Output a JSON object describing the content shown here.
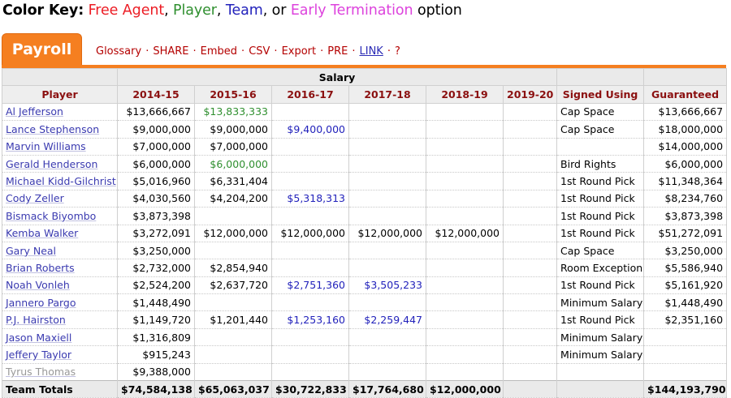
{
  "color_key": {
    "label": "Color Key:",
    "free_agent": "Free Agent",
    "sep1": ",",
    "player": "Player",
    "sep2": ",",
    "team": "Team",
    "sep3": ", or",
    "early_termination": "Early Termination",
    "suffix": "option"
  },
  "tabs": {
    "active": "Payroll",
    "links": [
      "Glossary",
      "SHARE",
      "Embed",
      "CSV",
      "Export",
      "PRE",
      "LINK",
      "?"
    ]
  },
  "table": {
    "group_header": "Salary",
    "columns": [
      "Player",
      "2014-15",
      "2015-16",
      "2016-17",
      "2017-18",
      "2018-19",
      "2019-20",
      "Signed Using",
      "Guaranteed"
    ],
    "rows": [
      {
        "player": "Al Jefferson",
        "s": [
          "$13,666,667",
          "$13,833,333",
          "",
          "",
          "",
          ""
        ],
        "signed": "Cap Space",
        "guaranteed": "$13,666,667"
      },
      {
        "player": "Lance Stephenson",
        "s": [
          "$9,000,000",
          "$9,000,000",
          "$9,400,000",
          "",
          "",
          ""
        ],
        "signed": "Cap Space",
        "guaranteed": "$18,000,000"
      },
      {
        "player": "Marvin Williams",
        "s": [
          "$7,000,000",
          "$7,000,000",
          "",
          "",
          "",
          ""
        ],
        "signed": "",
        "guaranteed": "$14,000,000"
      },
      {
        "player": "Gerald Henderson",
        "s": [
          "$6,000,000",
          "$6,000,000",
          "",
          "",
          "",
          ""
        ],
        "signed": "Bird Rights",
        "guaranteed": "$6,000,000"
      },
      {
        "player": "Michael Kidd-Gilchrist",
        "s": [
          "$5,016,960",
          "$6,331,404",
          "",
          "",
          "",
          ""
        ],
        "signed": "1st Round Pick",
        "guaranteed": "$11,348,364"
      },
      {
        "player": "Cody Zeller",
        "s": [
          "$4,030,560",
          "$4,204,200",
          "$5,318,313",
          "",
          "",
          ""
        ],
        "signed": "1st Round Pick",
        "guaranteed": "$8,234,760"
      },
      {
        "player": "Bismack Biyombo",
        "s": [
          "$3,873,398",
          "",
          "",
          "",
          "",
          ""
        ],
        "signed": "1st Round Pick",
        "guaranteed": "$3,873,398"
      },
      {
        "player": "Kemba Walker",
        "s": [
          "$3,272,091",
          "$12,000,000",
          "$12,000,000",
          "$12,000,000",
          "$12,000,000",
          ""
        ],
        "signed": "1st Round Pick",
        "guaranteed": "$51,272,091"
      },
      {
        "player": "Gary Neal",
        "s": [
          "$3,250,000",
          "",
          "",
          "",
          "",
          ""
        ],
        "signed": "Cap Space",
        "guaranteed": "$3,250,000"
      },
      {
        "player": "Brian Roberts",
        "s": [
          "$2,732,000",
          "$2,854,940",
          "",
          "",
          "",
          ""
        ],
        "signed": "Room Exception",
        "guaranteed": "$5,586,940"
      },
      {
        "player": "Noah Vonleh",
        "s": [
          "$2,524,200",
          "$2,637,720",
          "$2,751,360",
          "$3,505,233",
          "",
          ""
        ],
        "signed": "1st Round Pick",
        "guaranteed": "$5,161,920"
      },
      {
        "player": "Jannero Pargo",
        "s": [
          "$1,448,490",
          "",
          "",
          "",
          "",
          ""
        ],
        "signed": "Minimum Salary",
        "guaranteed": "$1,448,490"
      },
      {
        "player": "P.J. Hairston",
        "s": [
          "$1,149,720",
          "$1,201,440",
          "$1,253,160",
          "$2,259,447",
          "",
          ""
        ],
        "signed": "1st Round Pick",
        "guaranteed": "$2,351,160"
      },
      {
        "player": "Jason Maxiell",
        "s": [
          "$1,316,809",
          "",
          "",
          "",
          "",
          ""
        ],
        "signed": "Minimum Salary",
        "guaranteed": ""
      },
      {
        "player": "Jeffery Taylor",
        "s": [
          "$915,243",
          "",
          "",
          "",
          "",
          ""
        ],
        "signed": "Minimum Salary",
        "guaranteed": ""
      },
      {
        "player": "Tyrus Thomas",
        "s": [
          "$9,388,000",
          "",
          "",
          "",
          "",
          ""
        ],
        "signed": "",
        "guaranteed": ""
      }
    ],
    "totals": {
      "label": "Team Totals",
      "s": [
        "$74,584,138",
        "$65,063,037",
        "$30,722,833",
        "$17,764,680",
        "$12,000,000",
        ""
      ],
      "signed": "",
      "guaranteed": "$144,193,790"
    }
  },
  "colors": {
    "free_agent": "#ec1c24",
    "player_option": "#2f8f2f",
    "team_option": "#2222bb",
    "early_termination": "#dd44dd",
    "tab_accent": "#f57f20"
  }
}
